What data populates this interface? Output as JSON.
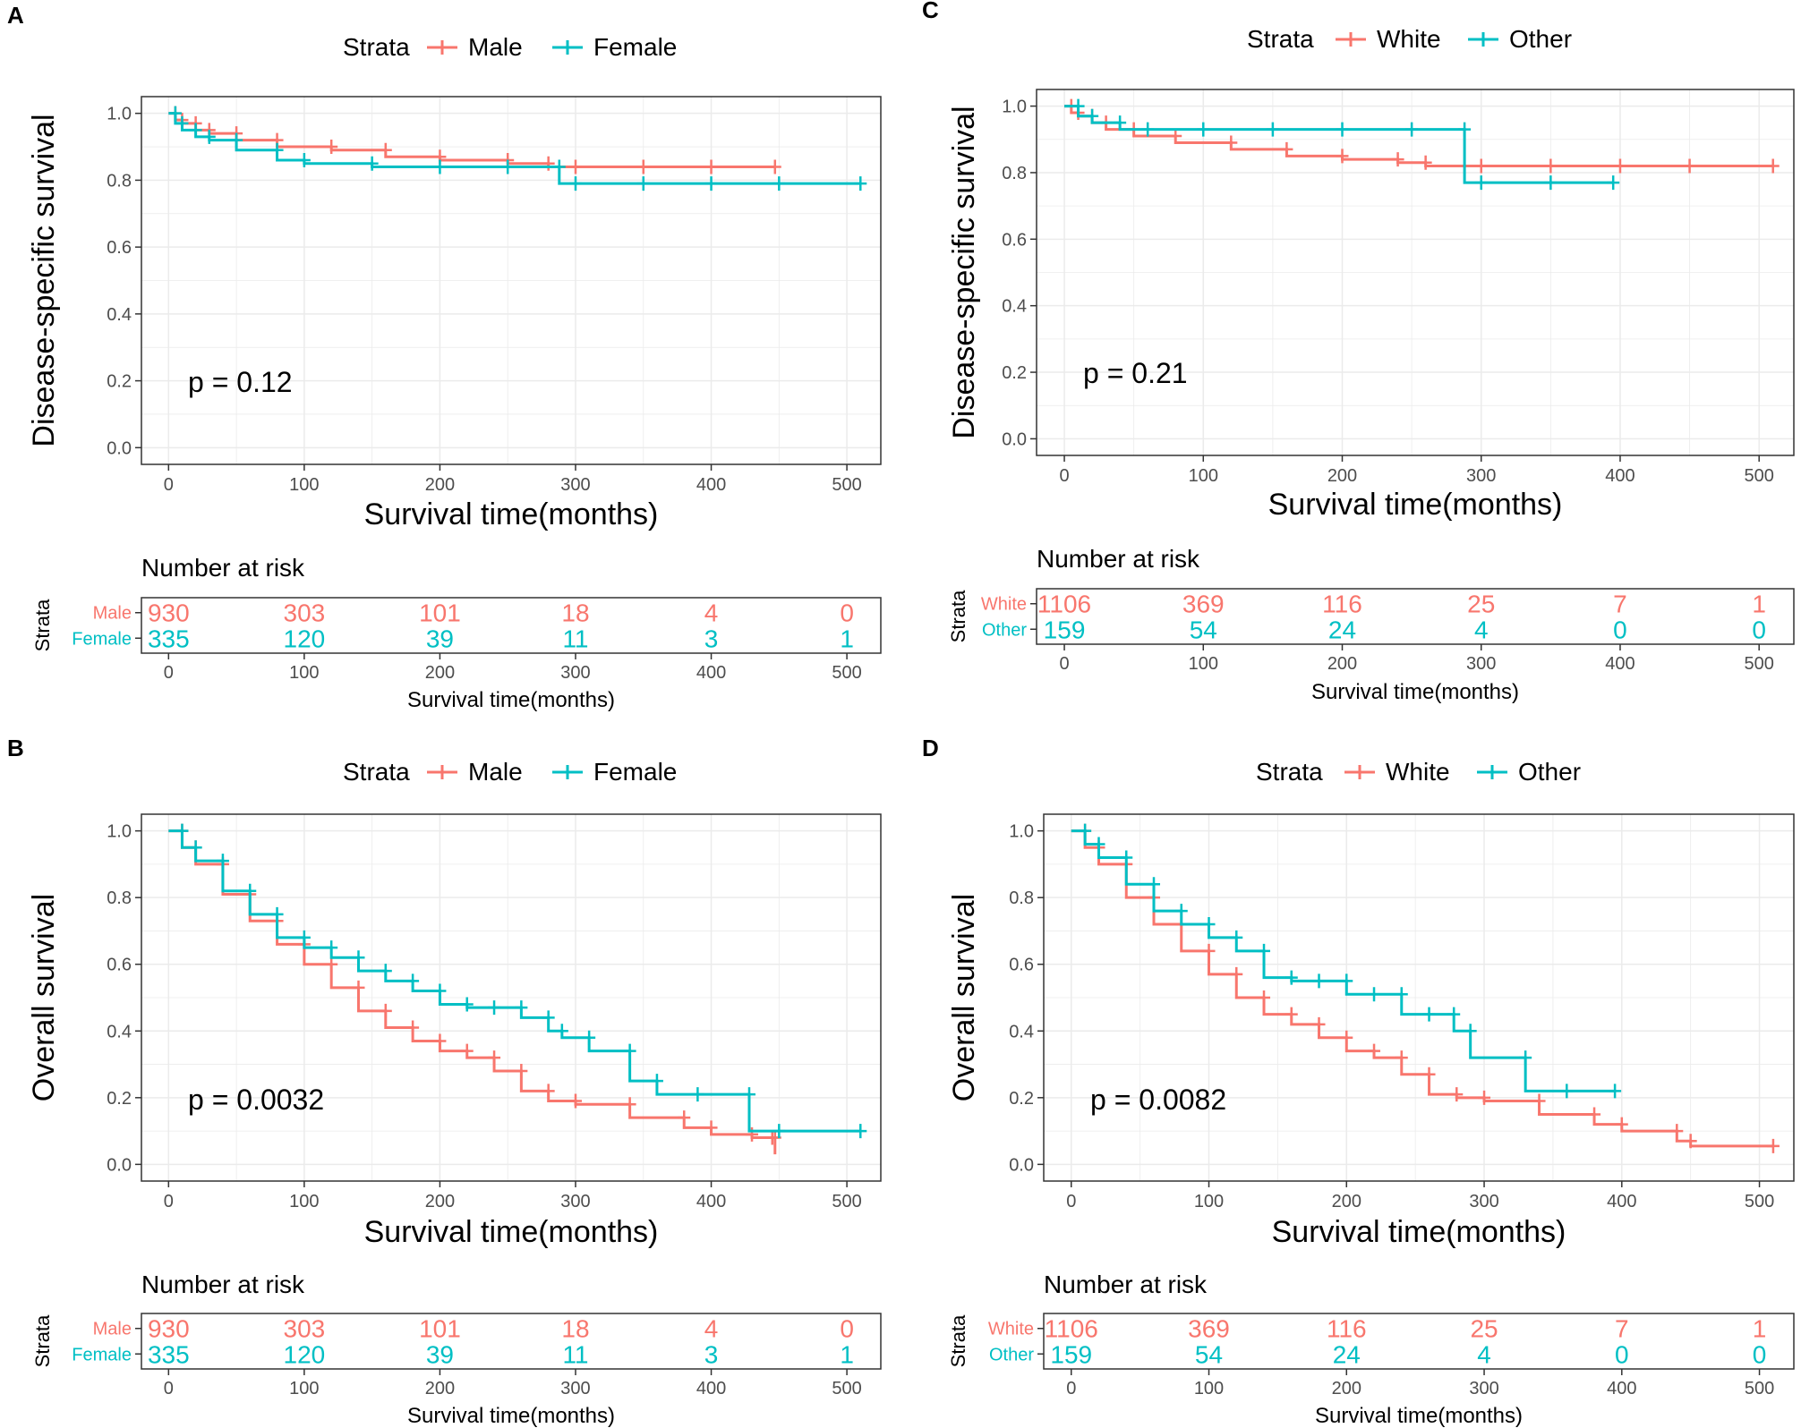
{
  "figure": {
    "colors": {
      "series1": "#F8766D",
      "series2": "#00BFC4",
      "grid": "#EBEBEB",
      "axis": "#4D4D4D"
    }
  },
  "chart_data": [
    {
      "panel": "A",
      "type": "line",
      "legend_title": "Strata",
      "series_names": [
        "Male",
        "Female"
      ],
      "ylabel": "Disease-specific survival",
      "xlabel": "Survival time(months)",
      "xlim": [
        -20,
        525
      ],
      "ylim": [
        -0.05,
        1.05
      ],
      "x_ticks": [
        0,
        100,
        200,
        300,
        400,
        500
      ],
      "y_ticks": [
        0.0,
        0.2,
        0.4,
        0.6,
        0.8,
        1.0
      ],
      "y_tick_labels": [
        "0.0",
        "0.2",
        "0.4",
        "0.6",
        "0.8",
        "1.0"
      ],
      "pvalue": "p = 0.12",
      "risk_title": "Number at risk",
      "risk_ylabel": "Strata",
      "risk_xlabel": "Survival time(months)",
      "risk_table": [
        [
          930,
          303,
          101,
          18,
          4,
          0
        ],
        [
          335,
          120,
          39,
          11,
          3,
          1
        ]
      ],
      "series": [
        {
          "name": "Male",
          "x": [
            0,
            5,
            10,
            20,
            30,
            50,
            80,
            120,
            160,
            200,
            250,
            280,
            300,
            350,
            400,
            447
          ],
          "y": [
            1.0,
            0.98,
            0.97,
            0.95,
            0.94,
            0.92,
            0.9,
            0.89,
            0.87,
            0.86,
            0.85,
            0.84,
            0.84,
            0.84,
            0.84,
            0.84
          ]
        },
        {
          "name": "Female",
          "x": [
            0,
            5,
            10,
            20,
            30,
            50,
            80,
            100,
            150,
            200,
            250,
            288,
            300,
            350,
            400,
            450,
            510
          ],
          "y": [
            1.0,
            0.97,
            0.95,
            0.93,
            0.92,
            0.89,
            0.86,
            0.85,
            0.84,
            0.84,
            0.84,
            0.79,
            0.79,
            0.79,
            0.79,
            0.79,
            0.79
          ]
        }
      ]
    },
    {
      "panel": "C",
      "type": "line",
      "legend_title": "Strata",
      "series_names": [
        "White",
        "Other"
      ],
      "ylabel": "Disease-specific survival",
      "xlabel": "Survival time(months)",
      "xlim": [
        -20,
        525
      ],
      "ylim": [
        -0.05,
        1.05
      ],
      "x_ticks": [
        0,
        100,
        200,
        300,
        400,
        500
      ],
      "y_ticks": [
        0.0,
        0.2,
        0.4,
        0.6,
        0.8,
        1.0
      ],
      "y_tick_labels": [
        "0.0",
        "0.2",
        "0.4",
        "0.6",
        "0.8",
        "1.0"
      ],
      "pvalue": "p = 0.21",
      "risk_title": "Number at risk",
      "risk_ylabel": "Strata",
      "risk_xlabel": "Survival time(months)",
      "risk_table": [
        [
          1106,
          369,
          116,
          25,
          7,
          1
        ],
        [
          159,
          54,
          24,
          4,
          0,
          0
        ]
      ],
      "series": [
        {
          "name": "White",
          "x": [
            0,
            5,
            10,
            20,
            30,
            50,
            80,
            120,
            160,
            200,
            240,
            260,
            300,
            350,
            400,
            450,
            510
          ],
          "y": [
            1.0,
            0.98,
            0.97,
            0.95,
            0.93,
            0.91,
            0.89,
            0.87,
            0.85,
            0.84,
            0.83,
            0.82,
            0.82,
            0.82,
            0.82,
            0.82,
            0.82
          ]
        },
        {
          "name": "Other",
          "x": [
            0,
            10,
            20,
            40,
            60,
            100,
            150,
            200,
            250,
            288,
            300,
            350,
            395
          ],
          "y": [
            1.0,
            0.97,
            0.95,
            0.93,
            0.93,
            0.93,
            0.93,
            0.93,
            0.93,
            0.77,
            0.77,
            0.77,
            0.77
          ]
        }
      ]
    },
    {
      "panel": "B",
      "type": "line",
      "legend_title": "Strata",
      "series_names": [
        "Male",
        "Female"
      ],
      "ylabel": "Overall survival",
      "xlabel": "Survival time(months)",
      "xlim": [
        -20,
        525
      ],
      "ylim": [
        -0.05,
        1.05
      ],
      "x_ticks": [
        0,
        100,
        200,
        300,
        400,
        500
      ],
      "y_ticks": [
        0.0,
        0.2,
        0.4,
        0.6,
        0.8,
        1.0
      ],
      "y_tick_labels": [
        "0.0",
        "0.2",
        "0.4",
        "0.6",
        "0.8",
        "1.0"
      ],
      "pvalue": "p = 0.0032",
      "risk_title": "Number at risk",
      "risk_ylabel": "Strata",
      "risk_xlabel": "Survival time(months)",
      "risk_table": [
        [
          930,
          303,
          101,
          18,
          4,
          0
        ],
        [
          335,
          120,
          39,
          11,
          3,
          1
        ]
      ],
      "series": [
        {
          "name": "Male",
          "x": [
            0,
            10,
            20,
            40,
            60,
            80,
            100,
            120,
            140,
            160,
            180,
            200,
            220,
            240,
            260,
            280,
            300,
            340,
            380,
            400,
            430,
            445,
            447
          ],
          "y": [
            1.0,
            0.95,
            0.9,
            0.81,
            0.73,
            0.66,
            0.6,
            0.53,
            0.46,
            0.41,
            0.37,
            0.34,
            0.32,
            0.28,
            0.22,
            0.19,
            0.18,
            0.14,
            0.11,
            0.09,
            0.08,
            0.08,
            0.03
          ]
        },
        {
          "name": "Female",
          "x": [
            0,
            10,
            20,
            40,
            60,
            80,
            100,
            120,
            140,
            160,
            180,
            200,
            220,
            240,
            260,
            280,
            290,
            310,
            340,
            360,
            390,
            428,
            450,
            510
          ],
          "y": [
            1.0,
            0.95,
            0.91,
            0.82,
            0.75,
            0.68,
            0.65,
            0.62,
            0.58,
            0.55,
            0.52,
            0.48,
            0.47,
            0.47,
            0.44,
            0.4,
            0.38,
            0.34,
            0.25,
            0.21,
            0.21,
            0.1,
            0.1,
            0.1
          ]
        }
      ]
    },
    {
      "panel": "D",
      "type": "line",
      "legend_title": "Strata",
      "series_names": [
        "White",
        "Other"
      ],
      "ylabel": "Overall survival",
      "xlabel": "Survival time(months)",
      "xlim": [
        -20,
        525
      ],
      "ylim": [
        -0.05,
        1.05
      ],
      "x_ticks": [
        0,
        100,
        200,
        300,
        400,
        500
      ],
      "y_ticks": [
        0.0,
        0.2,
        0.4,
        0.6,
        0.8,
        1.0
      ],
      "y_tick_labels": [
        "0.0",
        "0.2",
        "0.4",
        "0.6",
        "0.8",
        "1.0"
      ],
      "pvalue": "p = 0.0082",
      "risk_title": "Number at risk",
      "risk_ylabel": "Strata",
      "risk_xlabel": "Survival time(months)",
      "risk_table": [
        [
          1106,
          369,
          116,
          25,
          7,
          1
        ],
        [
          159,
          54,
          24,
          4,
          0,
          0
        ]
      ],
      "series": [
        {
          "name": "White",
          "x": [
            0,
            10,
            20,
            40,
            60,
            80,
            100,
            120,
            140,
            160,
            180,
            200,
            220,
            240,
            260,
            280,
            300,
            340,
            380,
            400,
            440,
            450,
            510
          ],
          "y": [
            1.0,
            0.95,
            0.9,
            0.8,
            0.72,
            0.64,
            0.57,
            0.5,
            0.45,
            0.42,
            0.38,
            0.34,
            0.32,
            0.27,
            0.21,
            0.2,
            0.19,
            0.15,
            0.12,
            0.1,
            0.07,
            0.055,
            0.055
          ]
        },
        {
          "name": "Other",
          "x": [
            0,
            10,
            20,
            40,
            60,
            80,
            100,
            120,
            140,
            160,
            180,
            200,
            220,
            240,
            260,
            278,
            290,
            330,
            360,
            395
          ],
          "y": [
            1.0,
            0.96,
            0.92,
            0.84,
            0.76,
            0.72,
            0.68,
            0.64,
            0.56,
            0.55,
            0.55,
            0.51,
            0.51,
            0.45,
            0.45,
            0.4,
            0.32,
            0.22,
            0.22,
            0.22
          ]
        }
      ]
    }
  ]
}
